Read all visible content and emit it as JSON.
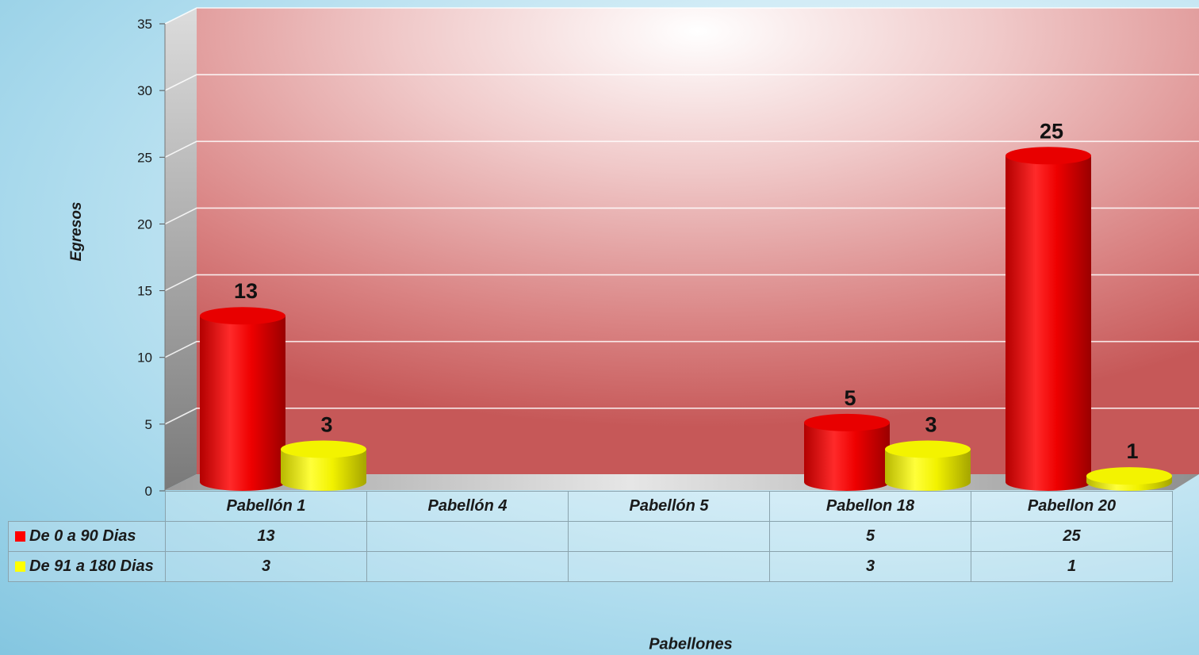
{
  "chart_data": {
    "type": "bar",
    "style": "3d-cylinder",
    "categories": [
      "Pabellón 1",
      "Pabellón 4",
      "Pabellón 5",
      "Pabellon 18",
      "Pabellon 20"
    ],
    "series": [
      {
        "name": "De 0 a 90 Dias",
        "color": "#ff0000",
        "values": [
          13,
          null,
          null,
          5,
          25
        ]
      },
      {
        "name": "De 91 a 180 Dias",
        "color": "#ffff00",
        "values": [
          3,
          null,
          null,
          3,
          1
        ]
      }
    ],
    "xlabel": "Pabellones",
    "ylabel": "Egresos",
    "ylim": [
      0,
      35
    ],
    "yticks": [
      0,
      5,
      10,
      15,
      20,
      25,
      30,
      35
    ],
    "data_labels": true,
    "grid": true,
    "data_table": true
  }
}
